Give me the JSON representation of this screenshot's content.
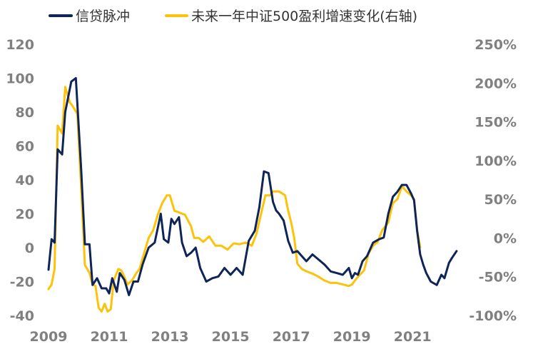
{
  "chart_data": {
    "type": "line",
    "title": "",
    "xlabel": "",
    "ylabel": "",
    "xlim": [
      2009,
      2022.5
    ],
    "ylim_left": [
      -40,
      120
    ],
    "ylim_right": [
      -100,
      250
    ],
    "x_tick_labels": [
      "2009",
      "2011",
      "2013",
      "2015",
      "2017",
      "2019",
      "2021"
    ],
    "x_ticks": [
      2009,
      2011,
      2013,
      2015,
      2017,
      2019,
      2021
    ],
    "y_left_ticks": [
      120,
      100,
      80,
      60,
      40,
      20,
      0,
      -20,
      -40
    ],
    "y_left_tick_labels": [
      "120",
      "100",
      "80",
      "60",
      "40",
      "20",
      "0",
      "-20",
      "-40"
    ],
    "y_right_ticks": [
      250,
      200,
      150,
      100,
      50,
      0,
      -50,
      -100
    ],
    "y_right_tick_labels": [
      "250%",
      "200%",
      "150%",
      "100%",
      "50%",
      "0%",
      "-50%",
      "-100%"
    ],
    "series": [
      {
        "name": "信贷脉冲",
        "axis": "left",
        "color": "#0f2557",
        "x": [
          2009.0,
          2009.1,
          2009.2,
          2009.3,
          2009.45,
          2009.55,
          2009.75,
          2009.9,
          2010.0,
          2010.08,
          2010.2,
          2010.35,
          2010.45,
          2010.6,
          2010.75,
          2010.9,
          2011.0,
          2011.1,
          2011.25,
          2011.35,
          2011.5,
          2011.65,
          2011.8,
          2011.95,
          2012.1,
          2012.3,
          2012.5,
          2012.7,
          2012.8,
          2012.95,
          2013.05,
          2013.15,
          2013.3,
          2013.4,
          2013.55,
          2013.7,
          2013.85,
          2014.0,
          2014.2,
          2014.4,
          2014.6,
          2014.8,
          2015.0,
          2015.2,
          2015.4,
          2015.6,
          2015.8,
          2015.95,
          2016.1,
          2016.25,
          2016.4,
          2016.5,
          2016.6,
          2016.75,
          2016.9,
          2017.05,
          2017.2,
          2017.35,
          2017.5,
          2017.7,
          2017.9,
          2018.1,
          2018.3,
          2018.5,
          2018.7,
          2018.9,
          2019.0,
          2019.1,
          2019.2,
          2019.35,
          2019.5,
          2019.7,
          2019.9,
          2020.05,
          2020.2,
          2020.35,
          2020.5,
          2020.65,
          2020.8,
          2020.95,
          2021.05,
          2021.15,
          2021.25,
          2021.35,
          2021.45,
          2021.6,
          2021.8,
          2021.95,
          2022.05,
          2022.2,
          2022.3,
          2022.45
        ],
        "values": [
          -13,
          5,
          3,
          58,
          55,
          80,
          98,
          100,
          70,
          45,
          2,
          2,
          -22,
          -18,
          -24,
          -24,
          -27,
          -18,
          -26,
          -15,
          -19,
          -28,
          -20,
          -20,
          -10,
          0,
          3,
          20,
          5,
          3,
          17,
          14,
          18,
          3,
          -5,
          -3,
          0,
          -12,
          -20,
          -18,
          -17,
          -12,
          -16,
          -12,
          -16,
          4,
          10,
          24,
          45,
          44,
          27,
          22,
          20,
          16,
          4,
          -3,
          -2,
          -5,
          -8,
          -4,
          -7,
          -10,
          -14,
          -15,
          -16,
          -12,
          -18,
          -15,
          -16,
          -8,
          -5,
          3,
          5,
          6,
          20,
          30,
          33,
          37,
          37,
          32,
          28,
          10,
          -4,
          -10,
          -15,
          -20,
          -22,
          -16,
          -18,
          -9,
          -6,
          -2
        ]
      },
      {
        "name": "未来一年中证500盈利增速变化(右轴)",
        "axis": "right",
        "color": "#fdc20a",
        "x": [
          2009.0,
          2009.1,
          2009.2,
          2009.3,
          2009.45,
          2009.55,
          2009.7,
          2009.8,
          2009.95,
          2010.05,
          2010.2,
          2010.35,
          2010.45,
          2010.55,
          2010.65,
          2010.75,
          2010.85,
          2010.95,
          2011.05,
          2011.15,
          2011.3,
          2011.4,
          2011.5,
          2011.6,
          2011.75,
          2011.9,
          2012.0,
          2012.15,
          2012.3,
          2012.45,
          2012.6,
          2012.75,
          2012.9,
          2013.0,
          2013.15,
          2013.3,
          2013.5,
          2013.7,
          2013.8,
          2013.95,
          2014.1,
          2014.3,
          2014.5,
          2014.7,
          2014.9,
          2015.1,
          2015.3,
          2015.5,
          2015.7,
          2015.85,
          2016.0,
          2016.15,
          2016.3,
          2016.4,
          2016.6,
          2016.8,
          2016.9,
          2017.0,
          2017.1,
          2017.2,
          2017.35,
          2017.5,
          2017.7,
          2017.9,
          2018.1,
          2018.3,
          2018.5,
          2018.7,
          2018.9,
          2019.0,
          2019.2,
          2019.4,
          2019.55,
          2019.7,
          2019.85,
          2020.0,
          2020.2,
          2020.35,
          2020.5,
          2020.65,
          2020.8,
          2020.95,
          2021.05,
          2021.15,
          2021.25
        ],
        "values": [
          -66,
          -60,
          -40,
          145,
          135,
          195,
          175,
          170,
          160,
          85,
          -35,
          -45,
          -60,
          -62,
          -90,
          -95,
          -85,
          -95,
          -92,
          -55,
          -40,
          -42,
          -50,
          -60,
          -55,
          -45,
          -40,
          -20,
          0,
          10,
          30,
          45,
          55,
          55,
          35,
          33,
          30,
          15,
          0,
          0,
          -5,
          2,
          -10,
          -10,
          -15,
          -7,
          -8,
          -6,
          -10,
          5,
          30,
          55,
          55,
          60,
          60,
          55,
          35,
          20,
          0,
          -33,
          -40,
          -43,
          -46,
          -50,
          -55,
          -58,
          -58,
          -60,
          -62,
          -60,
          -50,
          -42,
          -20,
          -10,
          -5,
          10,
          20,
          45,
          50,
          67,
          60,
          55,
          50,
          10,
          -12
        ]
      }
    ]
  },
  "legend": [
    {
      "label": "信贷脉冲",
      "color": "#0f2557"
    },
    {
      "label": "未来一年中证500盈利增速变化(右轴)",
      "color": "#fdc20a"
    }
  ]
}
